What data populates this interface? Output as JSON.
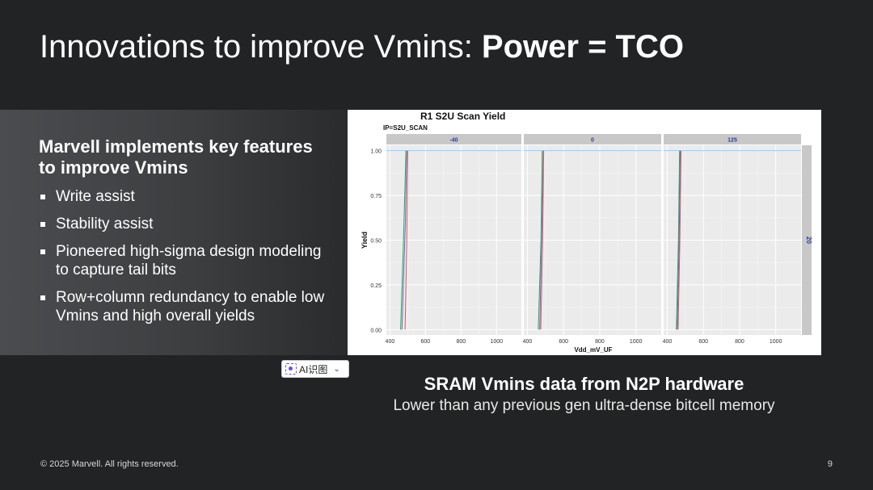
{
  "title": {
    "prefix": "Innovations to improve Vmins: ",
    "bold": "Power = TCO"
  },
  "left_panel": {
    "heading": "Marvell implements key features to improve Vmins",
    "bullets": [
      "Write assist",
      "Stability assist",
      "Pioneered high-sigma design modeling to capture tail bits",
      "Row+column redundancy to enable low Vmins and high overall yields"
    ]
  },
  "ai_badge": {
    "label": "AI识图"
  },
  "caption": {
    "title": "SRAM Vmins data from N2P hardware",
    "subtitle": "Lower than any previous gen ultra-dense bitcell memory"
  },
  "footer": {
    "copyright": "© 2025 Marvell. All rights reserved.",
    "page": "9"
  },
  "colors": {
    "background": "#222324",
    "series_green": "#2aa84a",
    "series_blue": "#5b6bd6",
    "series_red": "#e0555a",
    "ref_line": "#9ec3f0"
  },
  "chart_data": {
    "type": "line",
    "title": "R1 S2U Scan Yield",
    "subtitle": "IP=S2U_SCAN",
    "xlabel": "Vdd_mV_UF",
    "ylabel": "Yield",
    "xlim": [
      380,
      1140
    ],
    "ylim": [
      -0.03,
      1.03
    ],
    "xticks": [
      400,
      600,
      800,
      1000
    ],
    "yticks": [
      0.0,
      0.25,
      0.5,
      0.75,
      1.0
    ],
    "ytick_labels": [
      "0.00",
      "0.25",
      "0.50",
      "0.75",
      "1.00"
    ],
    "strip_label_right": "20",
    "reference_line_y": 1.0,
    "panels": [
      {
        "label": "-40",
        "series": [
          {
            "color": "#2aa84a",
            "points": [
              [
                460,
                0.0
              ],
              [
                478,
                0.55
              ],
              [
                490,
                1.0
              ]
            ]
          },
          {
            "color": "#5b6bd6",
            "points": [
              [
                468,
                0.0
              ],
              [
                487,
                0.6
              ],
              [
                495,
                1.0
              ]
            ]
          },
          {
            "color": "#e0555a",
            "points": [
              [
                485,
                0.0
              ],
              [
                495,
                0.5
              ],
              [
                500,
                1.0
              ]
            ]
          }
        ]
      },
      {
        "label": "0",
        "series": [
          {
            "color": "#2aa84a",
            "points": [
              [
                460,
                0.0
              ],
              [
                475,
                0.5
              ],
              [
                482,
                1.0
              ]
            ]
          },
          {
            "color": "#5b6bd6",
            "points": [
              [
                468,
                0.0
              ],
              [
                480,
                0.6
              ],
              [
                488,
                1.0
              ]
            ]
          },
          {
            "color": "#e0555a",
            "points": [
              [
                474,
                0.0
              ],
              [
                484,
                0.5
              ],
              [
                490,
                1.0
              ]
            ]
          }
        ]
      },
      {
        "label": "125",
        "series": [
          {
            "color": "#2aa84a",
            "points": [
              [
                450,
                0.0
              ],
              [
                462,
                0.5
              ],
              [
                468,
                1.0
              ]
            ]
          },
          {
            "color": "#5b6bd6",
            "points": [
              [
                455,
                0.0
              ],
              [
                466,
                0.5
              ],
              [
                472,
                1.0
              ]
            ]
          },
          {
            "color": "#e0555a",
            "points": [
              [
                460,
                0.0
              ],
              [
                470,
                0.5
              ],
              [
                476,
                1.0
              ]
            ]
          }
        ]
      }
    ]
  }
}
